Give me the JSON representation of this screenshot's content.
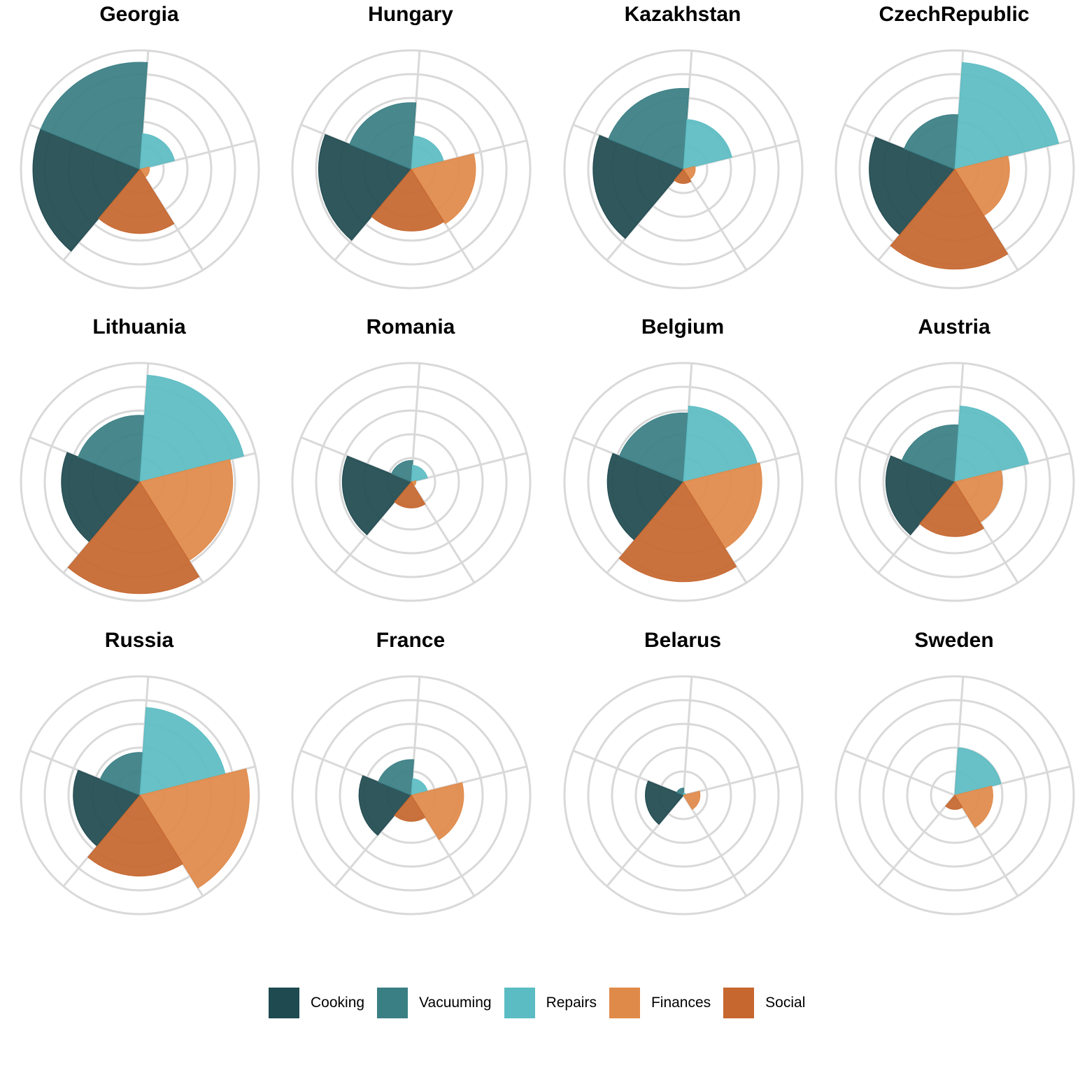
{
  "chart_data": {
    "type": "polar-bar",
    "categories": [
      "Cooking",
      "Vacuuming",
      "Repairs",
      "Finances",
      "Social"
    ],
    "colors": [
      "#1f4a50",
      "#3a7f84",
      "#5cbcc3",
      "#e08a4a",
      "#c6672f"
    ],
    "rlim": [
      0,
      5
    ],
    "grid": true,
    "legend_position": "bottom",
    "panels": [
      {
        "name": "Georgia",
        "values": [
          4.5,
          4.5,
          1.5,
          0.4,
          2.7
        ]
      },
      {
        "name": "Hungary",
        "values": [
          3.9,
          2.8,
          1.4,
          2.7,
          2.6
        ]
      },
      {
        "name": "Kazakhstan",
        "values": [
          3.8,
          3.4,
          2.1,
          0.5,
          0.6
        ]
      },
      {
        "name": "CzechRepublic",
        "values": [
          3.6,
          2.3,
          4.5,
          2.3,
          4.2
        ]
      },
      {
        "name": "Lithuania",
        "values": [
          3.3,
          2.8,
          4.5,
          3.9,
          4.7
        ]
      },
      {
        "name": "Romania",
        "values": [
          2.9,
          0.9,
          0.7,
          0.2,
          1.1
        ]
      },
      {
        "name": "Belgium",
        "values": [
          3.2,
          2.9,
          3.2,
          3.3,
          4.2
        ]
      },
      {
        "name": "Austria",
        "values": [
          2.9,
          2.4,
          3.2,
          2.0,
          2.3
        ]
      },
      {
        "name": "Russia",
        "values": [
          2.8,
          1.8,
          3.7,
          4.6,
          3.4
        ]
      },
      {
        "name": "France",
        "values": [
          2.2,
          1.5,
          0.7,
          2.2,
          1.1
        ]
      },
      {
        "name": "Belarus",
        "values": [
          1.6,
          0.3,
          0.1,
          0.7,
          0.0
        ]
      },
      {
        "name": "Sweden",
        "values": [
          0.0,
          0.0,
          2.0,
          1.6,
          0.6
        ]
      }
    ]
  }
}
